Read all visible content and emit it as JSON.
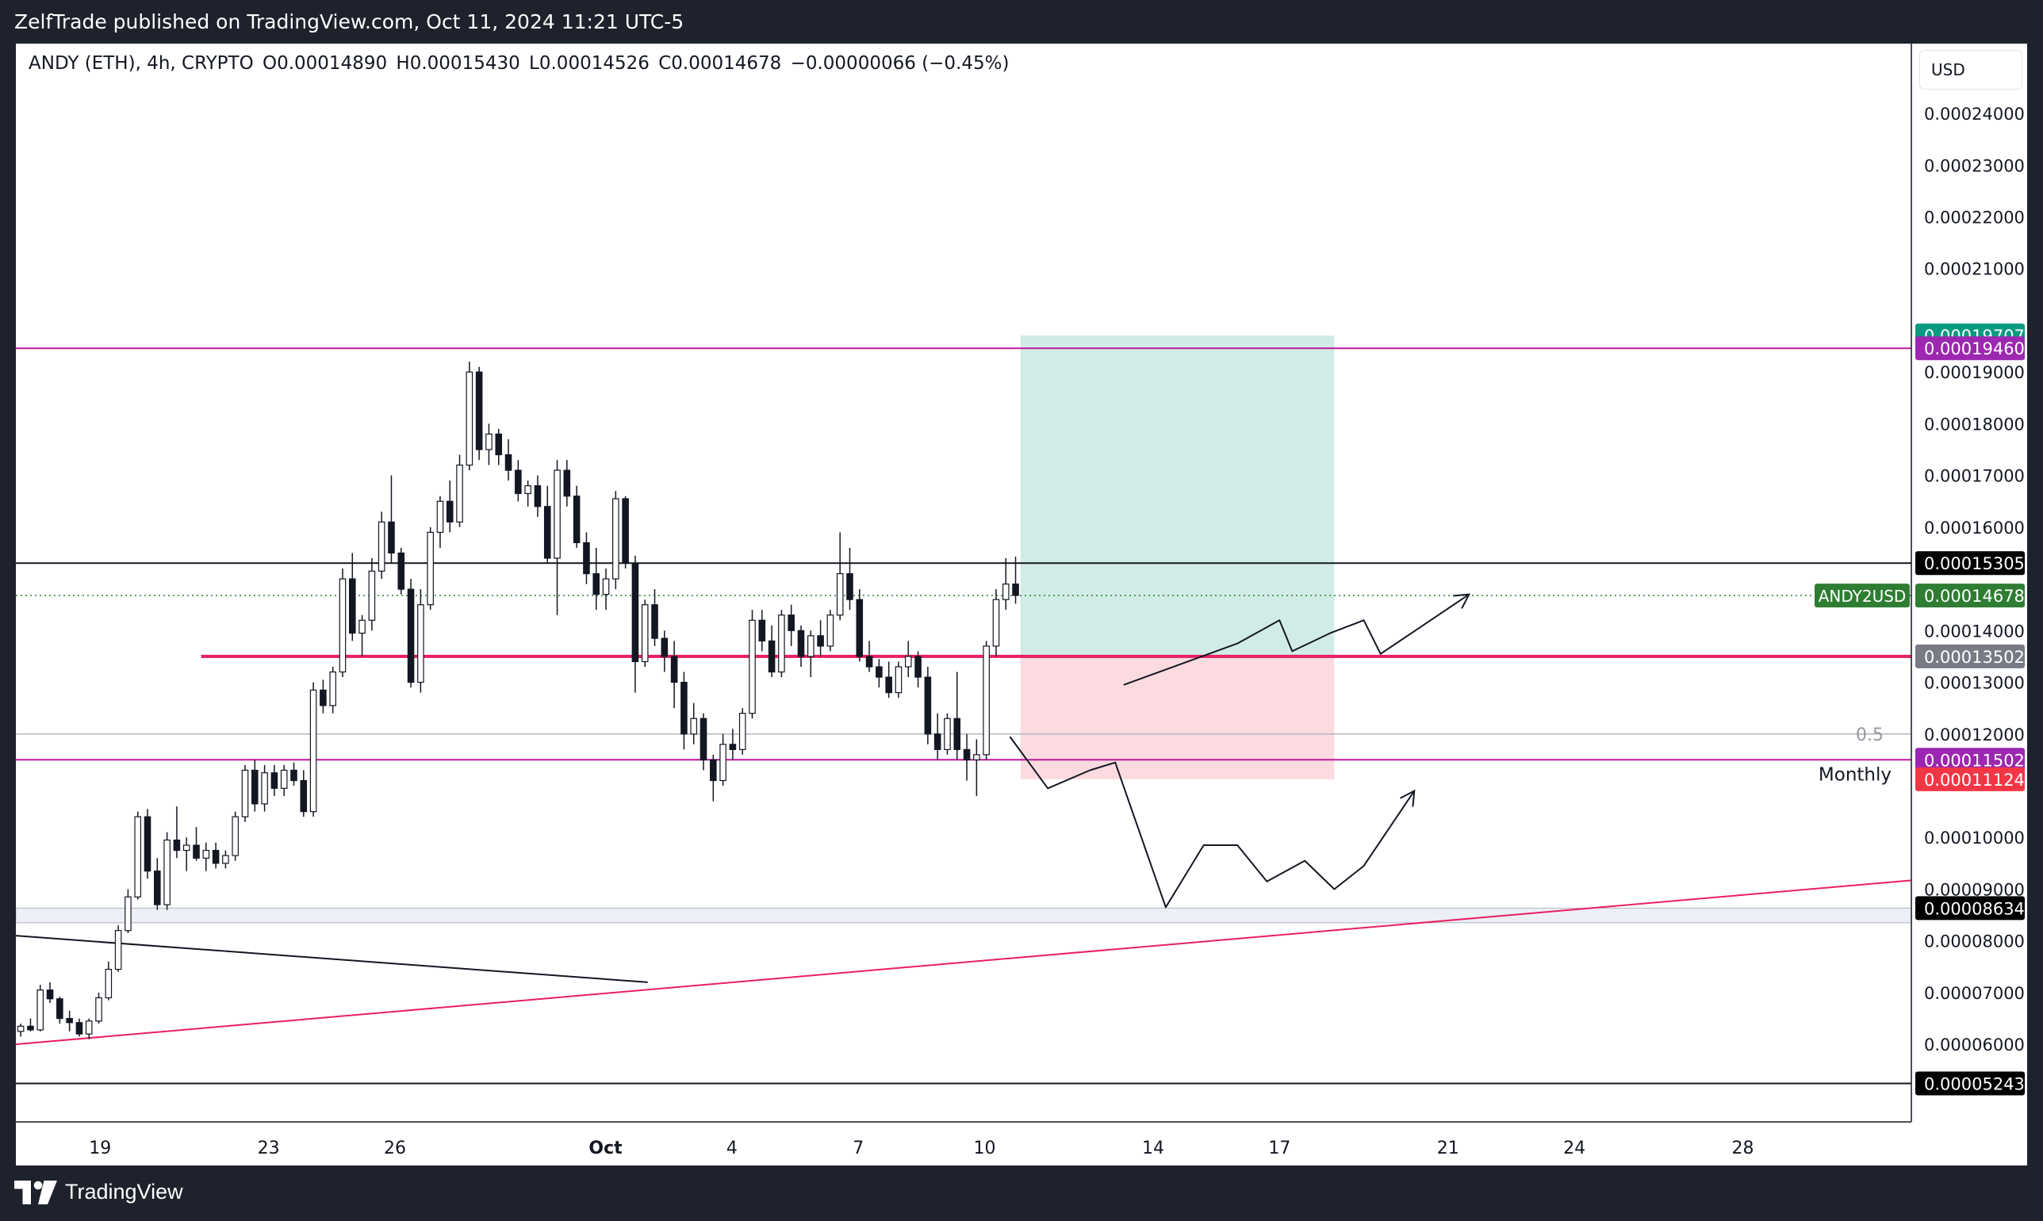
{
  "header": {
    "published_text": "ZelfTrade published on TradingView.com, Oct 11, 2024 11:21 UTC-5"
  },
  "legend": {
    "symbol": "ANDY (ETH), 4h, CRYPTO",
    "open": "O0.00014890",
    "high": "H0.00015430",
    "low": "L0.00014526",
    "close": "C0.00014678",
    "change": "−0.00000066 (−0.45%)"
  },
  "currency_button": "USD",
  "footer": {
    "brand": "TradingView"
  },
  "colors": {
    "background_dark": "#1e222d",
    "chart_bg": "#ffffff",
    "magenta_line": "#c2179c",
    "pink_line": "#e91e63",
    "target_zone": "#d1ece6",
    "stop_zone": "#fcdbe0",
    "tag_green": "#089981",
    "tag_purple": "#9c27b0",
    "tag_red": "#f23645",
    "tag_black": "#000000",
    "tag_gray": "#787b86",
    "tag_olive": "#2e7d32"
  },
  "chart_data": {
    "type": "candlestick",
    "symbol": "ANDY (ETH)",
    "interval": "4h",
    "ylim": [
      4.5e-05,
      0.0002535
    ],
    "y_ticks": [
      "0.00024000",
      "0.00023000",
      "0.00022000",
      "0.00021000",
      "0.00019000",
      "0.00018000",
      "0.00017000",
      "0.00016000",
      "0.00014000",
      "0.00013000",
      "0.00012000",
      "0.00010000",
      "0.00009000",
      "0.00008000",
      "0.00007000",
      "0.00006000"
    ],
    "x_ticks": [
      {
        "label": "19",
        "day": 19
      },
      {
        "label": "23",
        "day": 23
      },
      {
        "label": "26",
        "day": 26
      },
      {
        "label": "Oct",
        "day": 31
      },
      {
        "label": "4",
        "day": 34
      },
      {
        "label": "7",
        "day": 37
      },
      {
        "label": "10",
        "day": 40
      },
      {
        "label": "14",
        "day": 44
      },
      {
        "label": "17",
        "day": 47
      },
      {
        "label": "21",
        "day": 51
      },
      {
        "label": "24",
        "day": 54
      },
      {
        "label": "28",
        "day": 58
      }
    ],
    "x_range_days": [
      17.0,
      62.0
    ],
    "price_tags": [
      {
        "label": "0.00019707",
        "value": 0.00019707,
        "color": "#089981"
      },
      {
        "label": "0.00019460",
        "value": 0.0001946,
        "color": "#9c27b0"
      },
      {
        "label": "0.00015305",
        "value": 0.00015305,
        "color": "#000000"
      },
      {
        "label": "0.00014678",
        "value": 0.00014678,
        "color": "#2e7d32",
        "name": "ANDY2USD"
      },
      {
        "label": "0.00013502",
        "value": 0.00013502,
        "color": "#787b86"
      },
      {
        "label": "0.00011502",
        "value": 0.00011502,
        "color": "#9c27b0"
      },
      {
        "label": "0.00011124",
        "value": 0.00011124,
        "color": "#f23645"
      },
      {
        "label": "0.00008634",
        "value": 8.634e-05,
        "color": "#000000"
      },
      {
        "label": "0.00005243",
        "value": 5.243e-05,
        "color": "#000000"
      }
    ],
    "annotations": {
      "fib_label": "0.5",
      "monthly_label": "Monthly"
    },
    "levels": {
      "top_magenta": 0.0001946,
      "black_resistance": 0.00015305,
      "current_dotted": 0.00014678,
      "pink_support": 0.00013502,
      "fib_half": 0.00012,
      "monthly_magenta": 0.00011502,
      "gray_zone_top": 8.634e-05,
      "gray_zone_bottom": 8.35e-05,
      "bottom_black": 5.243e-05
    },
    "position": {
      "entry": 0.00013502,
      "target": 0.00019707,
      "stop": 0.00011124,
      "start_day": 40.85,
      "end_day": 48.3
    },
    "trendlines": [
      {
        "name": "pink-trendline",
        "from": [
          17.0,
          6e-05
        ],
        "to": [
          62.0,
          9.17e-05
        ]
      },
      {
        "name": "black-trendline",
        "from": [
          17.0,
          8.1e-05
        ],
        "to": [
          32.0,
          7.2e-05
        ]
      }
    ],
    "projections": {
      "bullish": [
        [
          43.3,
          0.0001295
        ],
        [
          46.0,
          0.0001375
        ],
        [
          47.0,
          0.000142
        ],
        [
          47.3,
          0.000136
        ],
        [
          48.2,
          0.0001395
        ],
        [
          49.0,
          0.000142
        ],
        [
          49.4,
          0.0001355
        ],
        [
          51.5,
          0.000147
        ]
      ],
      "bearish": [
        [
          40.6,
          0.0001195
        ],
        [
          41.5,
          0.0001095
        ],
        [
          42.5,
          0.000113
        ],
        [
          43.1,
          0.0001145
        ],
        [
          44.3,
          8.65e-05
        ],
        [
          45.2,
          9.85e-05
        ],
        [
          46.0,
          9.85e-05
        ],
        [
          46.7,
          9.15e-05
        ],
        [
          47.6,
          9.55e-05
        ],
        [
          48.3,
          9e-05
        ],
        [
          49.0,
          9.45e-05
        ],
        [
          50.2,
          0.000109
        ]
      ]
    },
    "candles_ohlc": [
      [
        6.25e-05,
        6.4e-05,
        6.15e-05,
        6.35e-05
      ],
      [
        6.35e-05,
        6.5e-05,
        6.25e-05,
        6.28e-05
      ],
      [
        6.28e-05,
        7.15e-05,
        6.25e-05,
        7.05e-05
      ],
      [
        7.05e-05,
        7.2e-05,
        6.8e-05,
        6.88e-05
      ],
      [
        6.88e-05,
        6.92e-05,
        6.4e-05,
        6.5e-05
      ],
      [
        6.5e-05,
        6.65e-05,
        6.25e-05,
        6.42e-05
      ],
      [
        6.42e-05,
        6.5e-05,
        6.15e-05,
        6.2e-05
      ],
      [
        6.2e-05,
        6.5e-05,
        6.1e-05,
        6.45e-05
      ],
      [
        6.45e-05,
        7e-05,
        6.4e-05,
        6.9e-05
      ],
      [
        6.9e-05,
        7.6e-05,
        6.85e-05,
        7.45e-05
      ],
      [
        7.45e-05,
        8.3e-05,
        7.4e-05,
        8.2e-05
      ],
      [
        8.2e-05,
        9e-05,
        8.15e-05,
        8.85e-05
      ],
      [
        8.85e-05,
        0.000105,
        8.8e-05,
        0.000104
      ],
      [
        0.000104,
        0.0001055,
        9.2e-05,
        9.35e-05
      ],
      [
        9.35e-05,
        9.6e-05,
        8.6e-05,
        8.7e-05
      ],
      [
        8.7e-05,
        0.000101,
        8.6e-05,
        9.95e-05
      ],
      [
        9.95e-05,
        0.000106,
        9.6e-05,
        9.75e-05
      ],
      [
        9.75e-05,
        0.0001,
        9.35e-05,
        9.85e-05
      ],
      [
        9.85e-05,
        0.000102,
        9.55e-05,
        9.6e-05
      ],
      [
        9.6e-05,
        9.9e-05,
        9.35e-05,
        9.75e-05
      ],
      [
        9.75e-05,
        9.9e-05,
        9.4e-05,
        9.5e-05
      ],
      [
        9.5e-05,
        9.75e-05,
        9.4e-05,
        9.65e-05
      ],
      [
        9.65e-05,
        0.000105,
        9.55e-05,
        0.000104
      ],
      [
        0.000104,
        0.000114,
        0.000103,
        0.000113
      ],
      [
        0.000113,
        0.000115,
        0.000105,
        0.0001065
      ],
      [
        0.0001065,
        0.000114,
        0.000105,
        0.0001125
      ],
      [
        0.0001125,
        0.000114,
        0.000108,
        0.0001095
      ],
      [
        0.0001095,
        0.000114,
        0.000108,
        0.000113
      ],
      [
        0.000113,
        0.0001145,
        0.00011,
        0.000111
      ],
      [
        0.000111,
        0.000113,
        0.000104,
        0.000105
      ],
      [
        0.000105,
        0.00013,
        0.000104,
        0.0001285
      ],
      [
        0.0001285,
        0.0001305,
        0.000124,
        0.0001255
      ],
      [
        0.0001255,
        0.000133,
        0.000124,
        0.000132
      ],
      [
        0.000132,
        0.000152,
        0.000131,
        0.00015
      ],
      [
        0.00015,
        0.000155,
        0.000138,
        0.0001395
      ],
      [
        0.0001395,
        0.000143,
        0.000135,
        0.000142
      ],
      [
        0.000142,
        0.000154,
        0.00014,
        0.0001515
      ],
      [
        0.0001515,
        0.000163,
        0.00015,
        0.000161
      ],
      [
        0.000161,
        0.00017,
        0.000153,
        0.000155
      ],
      [
        0.000155,
        0.000156,
        0.000147,
        0.000148
      ],
      [
        0.000148,
        0.00015,
        0.000129,
        0.00013
      ],
      [
        0.00013,
        0.000148,
        0.000128,
        0.000145
      ],
      [
        0.000145,
        0.00016,
        0.000144,
        0.000159
      ],
      [
        0.000159,
        0.000166,
        0.000156,
        0.000165
      ],
      [
        0.000165,
        0.000169,
        0.000159,
        0.000161
      ],
      [
        0.000161,
        0.000174,
        0.00016,
        0.000172
      ],
      [
        0.000172,
        0.000192,
        0.000171,
        0.00019
      ],
      [
        0.00019,
        0.000191,
        0.000173,
        0.000175
      ],
      [
        0.000175,
        0.00018,
        0.000172,
        0.000178
      ],
      [
        0.000178,
        0.000179,
        0.000172,
        0.000174
      ],
      [
        0.000174,
        0.000177,
        0.000169,
        0.000171
      ],
      [
        0.000171,
        0.000173,
        0.000165,
        0.0001665
      ],
      [
        0.0001665,
        0.000169,
        0.000164,
        0.000168
      ],
      [
        0.000168,
        0.00017,
        0.000162,
        0.000164
      ],
      [
        0.000164,
        0.000168,
        0.000153,
        0.000154
      ],
      [
        0.000154,
        0.000173,
        0.000143,
        0.000171
      ],
      [
        0.000171,
        0.000173,
        0.000164,
        0.000166
      ],
      [
        0.000166,
        0.000168,
        0.000156,
        0.000157
      ],
      [
        0.000157,
        0.000159,
        0.000149,
        0.000151
      ],
      [
        0.000151,
        0.000156,
        0.000144,
        0.000147
      ],
      [
        0.000147,
        0.000152,
        0.000144,
        0.00015
      ],
      [
        0.00015,
        0.000167,
        0.000148,
        0.0001655
      ],
      [
        0.0001655,
        0.000166,
        0.000152,
        0.000153
      ],
      [
        0.000153,
        0.0001545,
        0.000128,
        0.000134
      ],
      [
        0.000134,
        0.000146,
        0.000133,
        0.000145
      ],
      [
        0.000145,
        0.000148,
        0.000137,
        0.0001385
      ],
      [
        0.0001385,
        0.00014,
        0.000132,
        0.000135
      ],
      [
        0.000135,
        0.000138,
        0.000125,
        0.00013
      ],
      [
        0.00013,
        0.000132,
        0.000117,
        0.00012
      ],
      [
        0.00012,
        0.000126,
        0.000118,
        0.000123
      ],
      [
        0.000123,
        0.000124,
        0.000113,
        0.000115
      ],
      [
        0.000115,
        0.000116,
        0.000107,
        0.000111
      ],
      [
        0.000111,
        0.00012,
        0.00011,
        0.000118
      ],
      [
        0.000118,
        0.000121,
        0.000115,
        0.000117
      ],
      [
        0.000117,
        0.000125,
        0.000116,
        0.000124
      ],
      [
        0.000124,
        0.000144,
        0.000123,
        0.000142
      ],
      [
        0.000142,
        0.000144,
        0.000136,
        0.000138
      ],
      [
        0.000138,
        0.000141,
        0.000131,
        0.000132
      ],
      [
        0.000132,
        0.000144,
        0.000131,
        0.000143
      ],
      [
        0.000143,
        0.000145,
        0.000137,
        0.00014
      ],
      [
        0.00014,
        0.000141,
        0.000133,
        0.000135
      ],
      [
        0.000135,
        0.00014,
        0.000131,
        0.000139
      ],
      [
        0.000139,
        0.000142,
        0.000135,
        0.000137
      ],
      [
        0.000137,
        0.000144,
        0.000136,
        0.000143
      ],
      [
        0.000143,
        0.000159,
        0.000142,
        0.000151
      ],
      [
        0.000151,
        0.000156,
        0.000144,
        0.000146
      ],
      [
        0.000146,
        0.000148,
        0.000134,
        0.000135
      ],
      [
        0.000135,
        0.000138,
        0.000132,
        0.000133
      ],
      [
        0.000133,
        0.0001345,
        0.000129,
        0.000131
      ],
      [
        0.000131,
        0.000134,
        0.000127,
        0.000128
      ],
      [
        0.000128,
        0.000134,
        0.000127,
        0.000133
      ],
      [
        0.000133,
        0.000138,
        0.000131,
        0.000135
      ],
      [
        0.000135,
        0.000136,
        0.000129,
        0.000131
      ],
      [
        0.000131,
        0.000133,
        0.000118,
        0.00012
      ],
      [
        0.00012,
        0.000124,
        0.000115,
        0.000117
      ],
      [
        0.000117,
        0.000124,
        0.000116,
        0.000123
      ],
      [
        0.000123,
        0.000132,
        0.000115,
        0.000117
      ],
      [
        0.000117,
        0.00012,
        0.000111,
        0.000115
      ],
      [
        0.000115,
        0.000119,
        0.000108,
        0.000116
      ],
      [
        0.000116,
        0.000138,
        0.000115,
        0.000137
      ],
      [
        0.000137,
        0.000148,
        0.000135,
        0.000146
      ],
      [
        0.000146,
        0.000154,
        0.000144,
        0.000149
      ],
      [
        0.000149,
        0.0001543,
        0.0001452,
        0.0001468
      ]
    ]
  }
}
